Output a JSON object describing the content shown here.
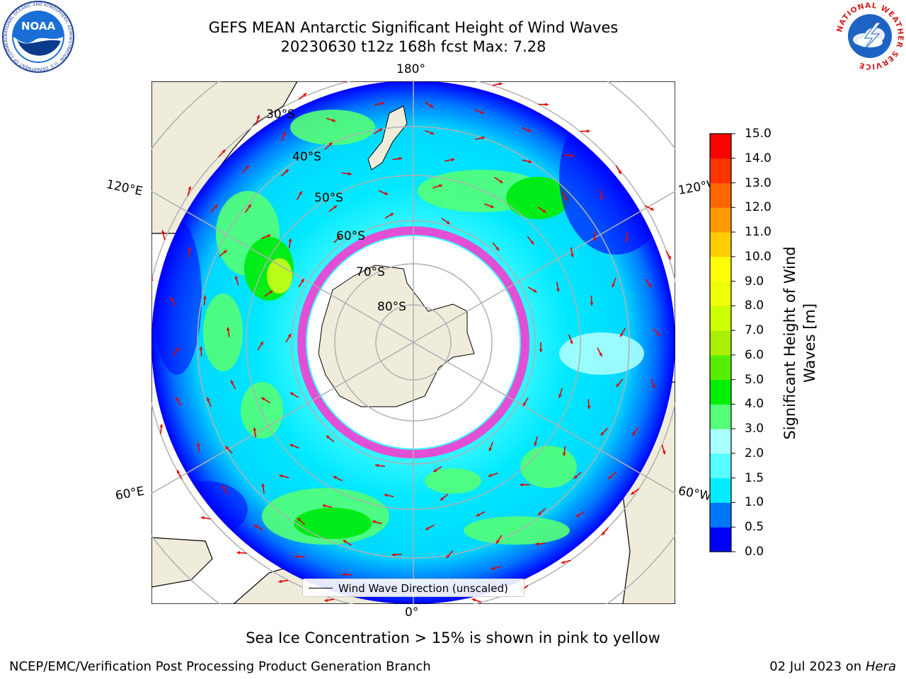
{
  "header": {
    "title_line1": "GEFS MEAN Antarctic Significant Height of Wind Waves",
    "title_line2": "20230630 t12z 168h fcst   Max: 7.28"
  },
  "logos": {
    "noaa": {
      "text": "NOAA",
      "ring_text": "NATIONAL OCEANIC AND ATMOSPHERIC ADMINISTRATION · U.S. DEPARTMENT OF COMMERCE"
    },
    "nws": {
      "ring_text": "NATIONAL WEATHER SERVICE"
    }
  },
  "map": {
    "projection": "south-polar-stereographic",
    "longitude_labels": {
      "top": "180°",
      "bottom": "0°",
      "left_upper": "120°E",
      "left_lower": "60°E",
      "right_upper": "120°W",
      "right_lower": "60°W"
    },
    "latitude_labels": [
      "30°S",
      "40°S",
      "50°S",
      "60°S",
      "70°S",
      "80°S"
    ],
    "legend_text": "Wind Wave Direction (unscaled)",
    "colors": {
      "land": "#efecdc",
      "ice_shelf": "#ffffff",
      "sea_ice_edge": "#ff33cc",
      "grid": "#b0b0b0",
      "arrow": "#e60000"
    }
  },
  "colorbar": {
    "label": "Significant Height of Wind Waves [m]",
    "ticks": [
      "0.0",
      "0.5",
      "1.0",
      "1.5",
      "2.0",
      "3.0",
      "4.0",
      "5.0",
      "6.0",
      "7.0",
      "8.0",
      "9.0",
      "10.0",
      "11.0",
      "12.0",
      "13.0",
      "14.0",
      "15.0"
    ],
    "colors": [
      "#0000ff",
      "#0077ff",
      "#00eeff",
      "#55ffff",
      "#aaffff",
      "#55ff77",
      "#00ee00",
      "#55ee00",
      "#aaee00",
      "#ccff00",
      "#eeff00",
      "#ffff00",
      "#ffcc00",
      "#ff9900",
      "#ff6600",
      "#ff3300",
      "#ff0000"
    ]
  },
  "footer": {
    "ice_note": "Sea Ice Concentration > 15% is shown in pink to yellow",
    "branch": "NCEP/EMC/Verification Post Processing Product Generation Branch",
    "date": "02 Jul 2023 on",
    "system": "Hera"
  }
}
